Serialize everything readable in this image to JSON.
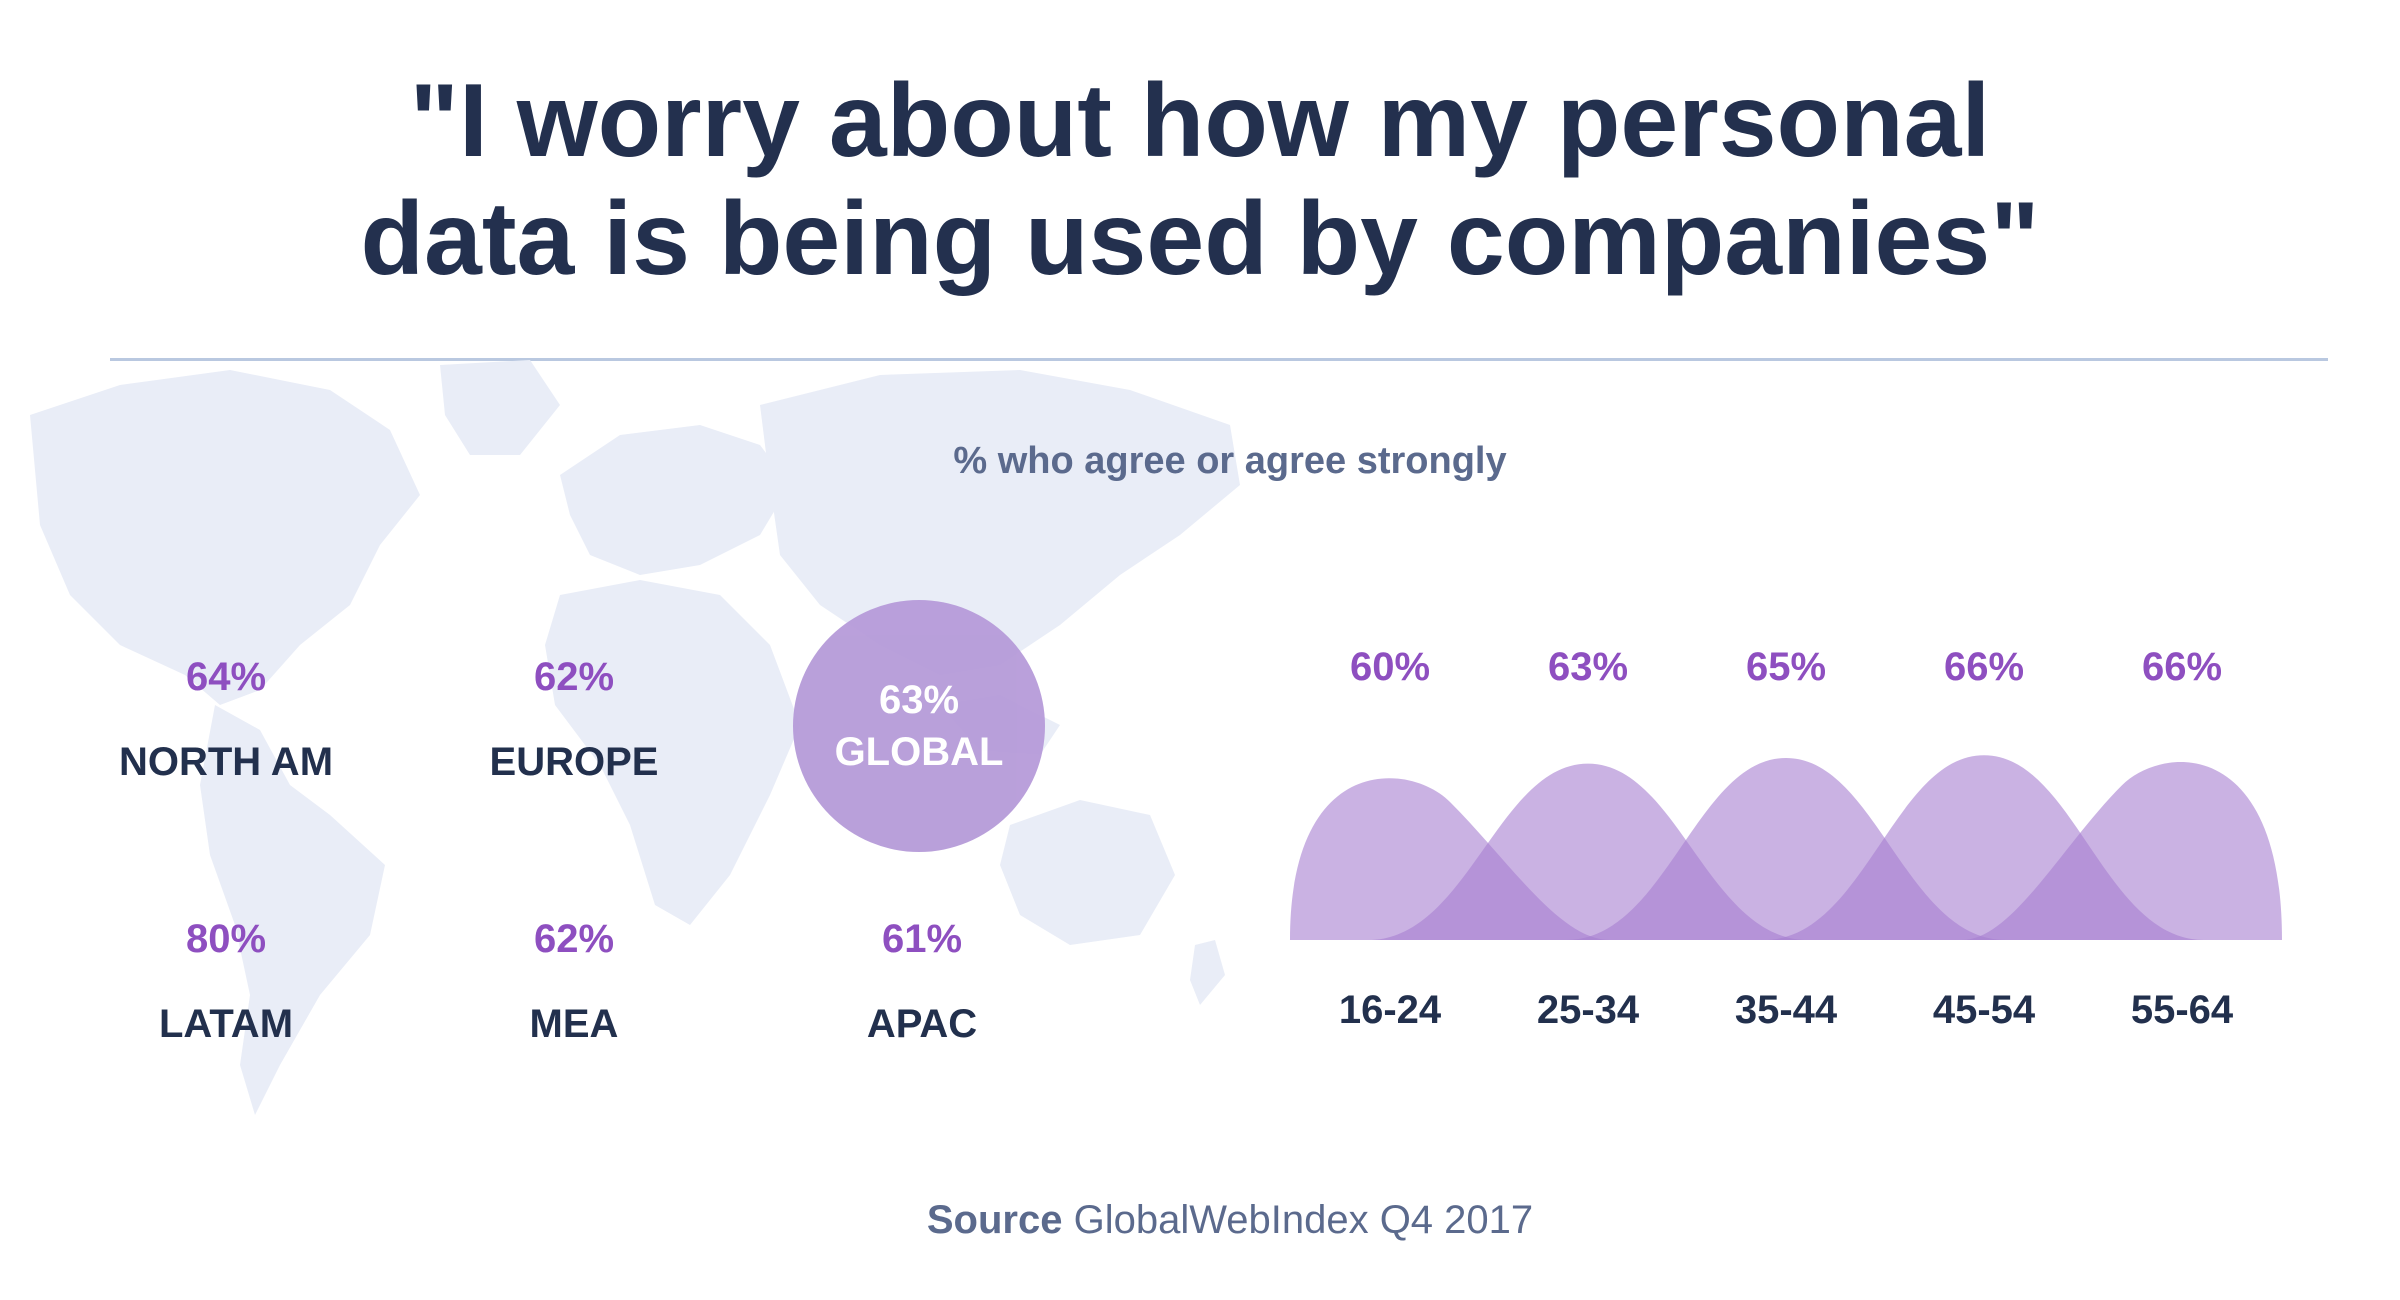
{
  "header": {
    "title_line1": "\"I worry about how my personal",
    "title_line2": "data is being used by companies\""
  },
  "subtitle": "% who agree or agree strongly",
  "global": {
    "value": "63%",
    "label": "GLOBAL"
  },
  "regions": [
    {
      "name": "NORTH AM",
      "value": "64%"
    },
    {
      "name": "EUROPE",
      "value": "62%"
    },
    {
      "name": "LATAM",
      "value": "80%"
    },
    {
      "name": "MEA",
      "value": "62%"
    },
    {
      "name": "APAC",
      "value": "61%"
    }
  ],
  "source": {
    "label": "Source",
    "text": "GlobalWebIndex Q4 2017"
  },
  "colors": {
    "accent": "#8e4fc0",
    "area": "#a77fd0",
    "circle": "#b69bd9",
    "title": "#23304e",
    "map": "#e9edf7"
  },
  "chart_data": {
    "type": "area",
    "categories": [
      "16-24",
      "25-34",
      "35-44",
      "45-54",
      "55-64"
    ],
    "values": [
      60,
      63,
      65,
      66,
      66
    ],
    "value_labels": [
      "60%",
      "63%",
      "65%",
      "66%",
      "66%"
    ],
    "title": "",
    "xlabel": "",
    "ylabel": "",
    "ylim": [
      0,
      100
    ],
    "grid": false,
    "legend": "none"
  }
}
